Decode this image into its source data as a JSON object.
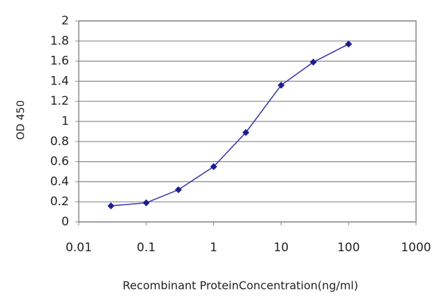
{
  "chart_data": {
    "type": "line",
    "x_label": "Recombinant ProteinConcentration(ng/ml)",
    "y_label": "OD 450",
    "x": [
      0.03,
      0.1,
      0.3,
      1,
      3,
      10,
      30,
      100
    ],
    "values": [
      0.16,
      0.19,
      0.32,
      0.55,
      0.89,
      1.36,
      1.59,
      1.77
    ],
    "color": "#1f1f8f",
    "xscale": "log",
    "xlim": [
      0.01,
      1000
    ],
    "xticks": [
      0.01,
      0.1,
      1,
      10,
      100,
      1000
    ],
    "ylim": [
      0,
      2
    ],
    "yticks": [
      0,
      0.2,
      0.4,
      0.6,
      0.8,
      1,
      1.2,
      1.4,
      1.6,
      1.8,
      2
    ],
    "grid": true
  }
}
